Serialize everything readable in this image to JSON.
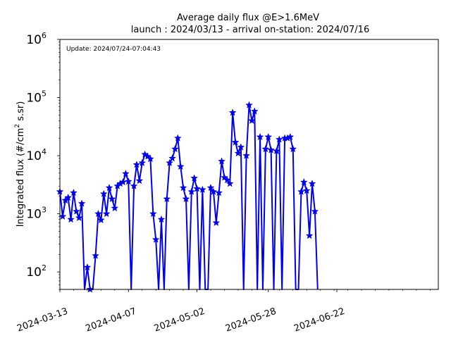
{
  "chart_data": {
    "type": "line",
    "title": "Average daily flux @E>1.6MeV",
    "subtitle": "launch : 2024/03/13 - arrival on-station: 2024/07/16",
    "annotation": "Update: 2024/07/24-07:04:43",
    "xlabel": "",
    "ylabel": "Integrated flux (#/cm² s.sr)",
    "ylabel_parts": {
      "main": "Integrated flux (#/cm",
      "sup": "2",
      "rest": " s.sr)"
    },
    "yscale": "log",
    "ylim": [
      50,
      1000000
    ],
    "xlim": [
      "2024-03-13",
      "2024-07-29"
    ],
    "x_tick_labels": [
      "2024-03-13",
      "2024-04-07",
      "2024-05-02",
      "2024-05-28",
      "2024-06-22"
    ],
    "y_tick_labels": [
      {
        "value": 100,
        "base": "10",
        "exp": "2"
      },
      {
        "value": 1000,
        "base": "10",
        "exp": "3"
      },
      {
        "value": 10000,
        "base": "10",
        "exp": "4"
      },
      {
        "value": 100000,
        "base": "10",
        "exp": "5"
      },
      {
        "value": 1000000,
        "base": "10",
        "exp": "6"
      }
    ],
    "grid": false,
    "series": [
      {
        "color": "#0000ee",
        "marker": "star",
        "points": [
          {
            "x": "2024-03-13",
            "y": 2400
          },
          {
            "x": "2024-03-14",
            "y": 900
          },
          {
            "x": "2024-03-15",
            "y": 1700
          },
          {
            "x": "2024-03-16",
            "y": 1900
          },
          {
            "x": "2024-03-17",
            "y": 800
          },
          {
            "x": "2024-03-18",
            "y": 2300
          },
          {
            "x": "2024-03-19",
            "y": 1100
          },
          {
            "x": "2024-03-20",
            "y": 850
          },
          {
            "x": "2024-03-21",
            "y": 1500
          },
          {
            "x": "2024-03-22",
            "y": 0
          },
          {
            "x": "2024-03-23",
            "y": 120
          },
          {
            "x": "2024-03-24",
            "y": 50
          },
          {
            "x": "2024-03-25",
            "y": 0
          },
          {
            "x": "2024-03-26",
            "y": 190
          },
          {
            "x": "2024-03-27",
            "y": 1000
          },
          {
            "x": "2024-03-28",
            "y": 780
          },
          {
            "x": "2024-03-29",
            "y": 2200
          },
          {
            "x": "2024-03-30",
            "y": 1000
          },
          {
            "x": "2024-03-31",
            "y": 2800
          },
          {
            "x": "2024-04-01",
            "y": 1800
          },
          {
            "x": "2024-04-02",
            "y": 1250
          },
          {
            "x": "2024-04-03",
            "y": 3000
          },
          {
            "x": "2024-04-04",
            "y": 3300
          },
          {
            "x": "2024-04-05",
            "y": 3500
          },
          {
            "x": "2024-04-06",
            "y": 4900
          },
          {
            "x": "2024-04-07",
            "y": 3600
          },
          {
            "x": "2024-04-08",
            "y": 0
          },
          {
            "x": "2024-04-09",
            "y": 3000
          },
          {
            "x": "2024-04-10",
            "y": 7000
          },
          {
            "x": "2024-04-11",
            "y": 3700
          },
          {
            "x": "2024-04-12",
            "y": 7500
          },
          {
            "x": "2024-04-13",
            "y": 10500
          },
          {
            "x": "2024-04-14",
            "y": 9700
          },
          {
            "x": "2024-04-15",
            "y": 8800
          },
          {
            "x": "2024-04-16",
            "y": 1000
          },
          {
            "x": "2024-04-17",
            "y": 360
          },
          {
            "x": "2024-04-18",
            "y": 0
          },
          {
            "x": "2024-04-19",
            "y": 800
          },
          {
            "x": "2024-04-20",
            "y": 0
          },
          {
            "x": "2024-04-21",
            "y": 1800
          },
          {
            "x": "2024-04-22",
            "y": 7500
          },
          {
            "x": "2024-04-23",
            "y": 9000
          },
          {
            "x": "2024-04-24",
            "y": 13000
          },
          {
            "x": "2024-04-25",
            "y": 20000
          },
          {
            "x": "2024-04-26",
            "y": 6500
          },
          {
            "x": "2024-04-27",
            "y": 2800
          },
          {
            "x": "2024-04-28",
            "y": 1800
          },
          {
            "x": "2024-04-29",
            "y": 0
          },
          {
            "x": "2024-04-30",
            "y": 2400
          },
          {
            "x": "2024-05-01",
            "y": 4100
          },
          {
            "x": "2024-05-02",
            "y": 2700
          },
          {
            "x": "2024-05-03",
            "y": 0
          },
          {
            "x": "2024-05-04",
            "y": 2600
          },
          {
            "x": "2024-05-05",
            "y": 0
          },
          {
            "x": "2024-05-06",
            "y": 0
          },
          {
            "x": "2024-05-07",
            "y": 2800
          },
          {
            "x": "2024-05-08",
            "y": 2400
          },
          {
            "x": "2024-05-09",
            "y": 700
          },
          {
            "x": "2024-05-10",
            "y": 2300
          },
          {
            "x": "2024-05-11",
            "y": 8000
          },
          {
            "x": "2024-05-12",
            "y": 4200
          },
          {
            "x": "2024-05-13",
            "y": 3800
          },
          {
            "x": "2024-05-14",
            "y": 3300
          },
          {
            "x": "2024-05-15",
            "y": 55000
          },
          {
            "x": "2024-05-16",
            "y": 17000
          },
          {
            "x": "2024-05-17",
            "y": 11000
          },
          {
            "x": "2024-05-18",
            "y": 14000
          },
          {
            "x": "2024-05-19",
            "y": 0
          },
          {
            "x": "2024-05-20",
            "y": 10000
          },
          {
            "x": "2024-05-21",
            "y": 74000
          },
          {
            "x": "2024-05-22",
            "y": 40000
          },
          {
            "x": "2024-05-23",
            "y": 58000
          },
          {
            "x": "2024-05-24",
            "y": 0
          },
          {
            "x": "2024-05-25",
            "y": 21000
          },
          {
            "x": "2024-05-26",
            "y": 0
          },
          {
            "x": "2024-05-27",
            "y": 13000
          },
          {
            "x": "2024-05-28",
            "y": 21000
          },
          {
            "x": "2024-05-29",
            "y": 12500
          },
          {
            "x": "2024-05-30",
            "y": 0
          },
          {
            "x": "2024-05-31",
            "y": 12000
          },
          {
            "x": "2024-06-01",
            "y": 19000
          },
          {
            "x": "2024-06-02",
            "y": 0
          },
          {
            "x": "2024-06-03",
            "y": 20000
          },
          {
            "x": "2024-06-04",
            "y": 20000
          },
          {
            "x": "2024-06-05",
            "y": 21000
          },
          {
            "x": "2024-06-06",
            "y": 13000
          },
          {
            "x": "2024-06-07",
            "y": 0
          },
          {
            "x": "2024-06-08",
            "y": 0
          },
          {
            "x": "2024-06-09",
            "y": 2400
          },
          {
            "x": "2024-06-10",
            "y": 3500
          },
          {
            "x": "2024-06-11",
            "y": 2500
          },
          {
            "x": "2024-06-12",
            "y": 420
          },
          {
            "x": "2024-06-13",
            "y": 3300
          },
          {
            "x": "2024-06-14",
            "y": 1100
          },
          {
            "x": "2024-06-15",
            "y": 0
          }
        ]
      }
    ]
  }
}
